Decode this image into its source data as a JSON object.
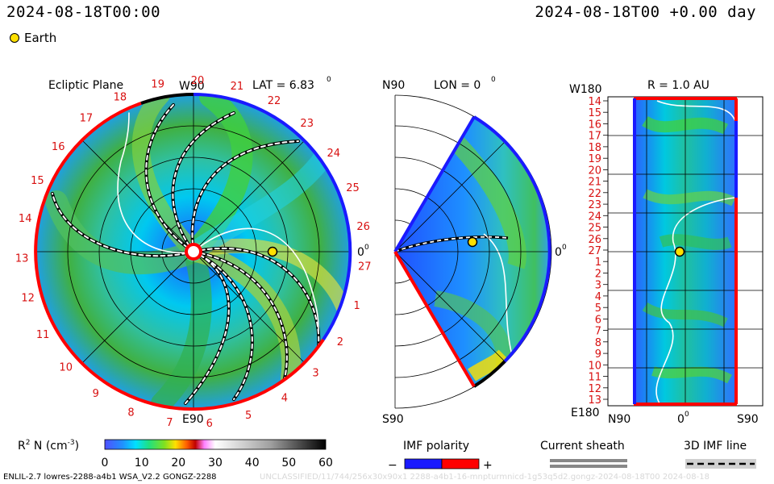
{
  "header": {
    "title_left": "2024-08-18T00:00",
    "title_right": "2024-08-18T00 +0.00 day"
  },
  "legend": {
    "earth_label": "Earth"
  },
  "panels": {
    "ecliptic": {
      "title": "Ecliptic Plane",
      "top_label": "W90",
      "lat_label": "LAT = 6.83",
      "lat_sup": "0",
      "right_label": "0",
      "right_sup": "0",
      "bottom_label": "E90",
      "rotation_labels": [
        "19",
        "20",
        "21",
        "22",
        "23",
        "24",
        "25",
        "26",
        "27",
        "1",
        "2",
        "3",
        "4",
        "5",
        "6",
        "7",
        "8",
        "9",
        "10",
        "11",
        "12",
        "13",
        "14",
        "15",
        "16",
        "17",
        "18"
      ]
    },
    "meridional": {
      "top_label": "N90",
      "lon_label": "LON = 0",
      "lon_sup": "0",
      "right_label": "0",
      "right_sup": "0",
      "bottom_label": "S90"
    },
    "synoptic": {
      "top_left_label": "W180",
      "r_label": "R = 1.0 AU",
      "bottom_left_label": "E180",
      "x_labels": [
        "N90",
        "0",
        "S90"
      ],
      "x_sup": "0",
      "y_labels": [
        "14",
        "15",
        "16",
        "17",
        "18",
        "19",
        "20",
        "21",
        "22",
        "23",
        "24",
        "25",
        "26",
        "27",
        "1",
        "2",
        "3",
        "4",
        "5",
        "6",
        "7",
        "8",
        "9",
        "10",
        "11",
        "12",
        "13"
      ]
    }
  },
  "colorbar": {
    "label": "R",
    "label_sup": "2",
    "label_rest": " N (cm",
    "label_exp": "-3",
    "label_end": ")",
    "ticks": [
      "0",
      "10",
      "20",
      "30",
      "40",
      "50",
      "60"
    ],
    "range": [
      0,
      60
    ]
  },
  "legends": {
    "imf_polarity": "IMF polarity",
    "minus": "−",
    "plus": "+",
    "current_sheath": "Current sheath",
    "imf_line": "3D IMF line"
  },
  "footer": {
    "left": "ENLIL-2.7 lowres-2288-a4b1 WSA_V2.2 GONGZ-2288",
    "right": "UNCLASSIFIED/11/744/256x30x90x1 2288-a4b1-16-mnpturmnicd-1g53q5d2.gongz-2024-08-18T00   2024-08-18"
  },
  "colors": {
    "positive_polarity": "#ff0000",
    "negative_polarity": "#1a1aff",
    "earth": "#ffe000"
  },
  "chart_data": {
    "type": "heatmap",
    "description_values": {
      "earth_position_ecliptic": {
        "radius_au": 1.0,
        "lon_deg": 0
      },
      "earth_position_meridional": {
        "radius_au": 1.0,
        "lat_deg": 6.83
      },
      "density_scale_cm3": [
        0,
        60
      ]
    }
  }
}
